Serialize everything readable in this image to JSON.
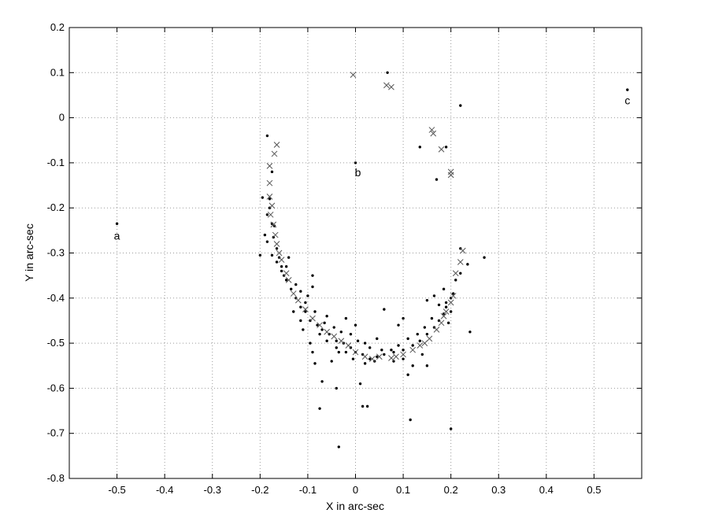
{
  "chart_data": {
    "type": "scatter",
    "xlabel": "X in arc-sec",
    "ylabel": "Y in arc-sec",
    "xlim": [
      -0.6,
      0.6
    ],
    "ylim": [
      -0.8,
      0.2
    ],
    "xticks": [
      -0.5,
      -0.4,
      -0.3,
      -0.2,
      -0.1,
      0,
      0.1,
      0.2,
      0.3,
      0.4,
      0.5
    ],
    "yticks": [
      0.2,
      0.1,
      0,
      -0.1,
      -0.2,
      -0.3,
      -0.4,
      -0.5,
      -0.6,
      -0.7,
      -0.8
    ],
    "xtick_labels": [
      "-0.5",
      "-0.4",
      "-0.3",
      "-0.2",
      "-0.1",
      "0",
      "0.1",
      "0.2",
      "0.3",
      "0.4",
      "0.5"
    ],
    "ytick_labels": [
      "0.2",
      "0.1",
      "0",
      "-0.1",
      "-0.2",
      "-0.3",
      "-0.4",
      "-0.5",
      "-0.6",
      "-0.7",
      "-0.8"
    ],
    "grid": true,
    "grid_style": "dotted",
    "annotations": [
      {
        "text": "a",
        "x": -0.5,
        "y": -0.27
      },
      {
        "text": "b",
        "x": 0.005,
        "y": -0.13
      },
      {
        "text": "c",
        "x": 0.57,
        "y": 0.03
      }
    ],
    "series": [
      {
        "marker": "dot",
        "color": "#000000",
        "points": [
          [
            -0.5,
            -0.235
          ],
          [
            0.0,
            -0.1
          ],
          [
            0.067,
            0.1
          ],
          [
            0.57,
            0.062
          ],
          [
            0.22,
            0.027
          ],
          [
            0.135,
            -0.065
          ],
          [
            0.17,
            -0.137
          ],
          [
            0.19,
            -0.065
          ],
          [
            -0.2,
            -0.305
          ],
          [
            -0.195,
            -0.177
          ],
          [
            -0.185,
            -0.04
          ],
          [
            -0.175,
            -0.12
          ],
          [
            -0.18,
            -0.2
          ],
          [
            -0.17,
            -0.24
          ],
          [
            -0.172,
            -0.265
          ],
          [
            -0.165,
            -0.29
          ],
          [
            -0.16,
            -0.31
          ],
          [
            -0.155,
            -0.33
          ],
          [
            -0.15,
            -0.35
          ],
          [
            -0.145,
            -0.36
          ],
          [
            -0.135,
            -0.38
          ],
          [
            -0.125,
            -0.4
          ],
          [
            -0.115,
            -0.42
          ],
          [
            -0.105,
            -0.43
          ],
          [
            -0.095,
            -0.45
          ],
          [
            -0.08,
            -0.46
          ],
          [
            -0.07,
            -0.47
          ],
          [
            -0.055,
            -0.48
          ],
          [
            -0.04,
            -0.495
          ],
          [
            -0.025,
            -0.5
          ],
          [
            -0.01,
            -0.51
          ],
          [
            0.0,
            -0.52
          ],
          [
            0.015,
            -0.525
          ],
          [
            0.03,
            -0.535
          ],
          [
            0.045,
            -0.53
          ],
          [
            0.06,
            -0.525
          ],
          [
            0.08,
            -0.52
          ],
          [
            0.1,
            -0.515
          ],
          [
            0.12,
            -0.505
          ],
          [
            0.135,
            -0.495
          ],
          [
            0.15,
            -0.48
          ],
          [
            0.165,
            -0.465
          ],
          [
            0.175,
            -0.45
          ],
          [
            0.185,
            -0.435
          ],
          [
            0.19,
            -0.42
          ],
          [
            0.2,
            -0.4
          ],
          [
            0.21,
            -0.36
          ],
          [
            0.22,
            -0.345
          ],
          [
            0.235,
            -0.325
          ],
          [
            0.27,
            -0.31
          ],
          [
            0.22,
            -0.29
          ],
          [
            0.185,
            -0.38
          ],
          [
            0.165,
            -0.395
          ],
          [
            0.15,
            -0.405
          ],
          [
            0.2,
            -0.43
          ],
          [
            0.24,
            -0.475
          ],
          [
            0.195,
            -0.455
          ],
          [
            0.1,
            -0.445
          ],
          [
            0.09,
            -0.46
          ],
          [
            0.06,
            -0.425
          ],
          [
            0.12,
            -0.55
          ],
          [
            0.11,
            -0.57
          ],
          [
            0.15,
            -0.55
          ],
          [
            0.14,
            -0.525
          ],
          [
            0.115,
            -0.67
          ],
          [
            0.2,
            -0.69
          ],
          [
            0.01,
            -0.59
          ],
          [
            0.015,
            -0.64
          ],
          [
            0.025,
            -0.64
          ],
          [
            -0.07,
            -0.585
          ],
          [
            -0.075,
            -0.645
          ],
          [
            -0.035,
            -0.73
          ],
          [
            -0.04,
            -0.6
          ],
          [
            -0.085,
            -0.545
          ],
          [
            -0.09,
            -0.52
          ],
          [
            -0.11,
            -0.47
          ],
          [
            -0.115,
            -0.45
          ],
          [
            -0.13,
            -0.43
          ],
          [
            -0.095,
            -0.5
          ],
          [
            -0.06,
            -0.44
          ],
          [
            -0.02,
            -0.445
          ],
          [
            0.0,
            -0.46
          ],
          [
            -0.01,
            -0.48
          ],
          [
            0.02,
            -0.5
          ],
          [
            -0.035,
            -0.52
          ],
          [
            -0.05,
            -0.54
          ],
          [
            0.045,
            -0.49
          ],
          [
            0.075,
            -0.515
          ],
          [
            -0.19,
            -0.26
          ],
          [
            -0.185,
            -0.275
          ],
          [
            -0.175,
            -0.305
          ],
          [
            -0.14,
            -0.31
          ],
          [
            -0.145,
            -0.33
          ],
          [
            -0.09,
            -0.375
          ],
          [
            -0.1,
            -0.395
          ],
          [
            -0.09,
            -0.35
          ],
          [
            -0.18,
            -0.18
          ],
          [
            -0.185,
            -0.215
          ],
          [
            -0.175,
            -0.235
          ],
          [
            -0.165,
            -0.32
          ],
          [
            -0.155,
            -0.34
          ],
          [
            -0.125,
            -0.37
          ],
          [
            -0.115,
            -0.385
          ],
          [
            -0.105,
            -0.41
          ],
          [
            -0.085,
            -0.43
          ],
          [
            -0.065,
            -0.455
          ],
          [
            -0.045,
            -0.465
          ],
          [
            -0.03,
            -0.475
          ],
          [
            0.005,
            -0.495
          ],
          [
            0.03,
            -0.51
          ],
          [
            0.055,
            -0.515
          ],
          [
            0.09,
            -0.505
          ],
          [
            0.11,
            -0.49
          ],
          [
            0.13,
            -0.48
          ],
          [
            0.145,
            -0.465
          ],
          [
            0.16,
            -0.445
          ],
          [
            0.175,
            -0.415
          ],
          [
            0.19,
            -0.41
          ],
          [
            0.205,
            -0.39
          ],
          [
            0.1,
            -0.535
          ],
          [
            0.08,
            -0.54
          ],
          [
            0.04,
            -0.54
          ],
          [
            0.02,
            -0.545
          ],
          [
            -0.005,
            -0.535
          ],
          [
            -0.02,
            -0.52
          ],
          [
            -0.04,
            -0.51
          ],
          [
            -0.06,
            -0.495
          ],
          [
            -0.075,
            -0.48
          ]
        ]
      },
      {
        "marker": "x",
        "color": "#555555",
        "points": [
          [
            -0.005,
            0.095
          ],
          [
            0.065,
            0.072
          ],
          [
            0.075,
            0.068
          ],
          [
            0.16,
            -0.027
          ],
          [
            0.163,
            -0.035
          ],
          [
            0.18,
            -0.07
          ],
          [
            0.2,
            -0.12
          ],
          [
            0.2,
            -0.127
          ],
          [
            -0.165,
            -0.06
          ],
          [
            -0.17,
            -0.08
          ],
          [
            -0.18,
            -0.107
          ],
          [
            -0.18,
            -0.145
          ],
          [
            -0.18,
            -0.175
          ],
          [
            -0.175,
            -0.195
          ],
          [
            -0.178,
            -0.215
          ],
          [
            -0.172,
            -0.237
          ],
          [
            -0.168,
            -0.26
          ],
          [
            -0.165,
            -0.28
          ],
          [
            -0.16,
            -0.3
          ],
          [
            -0.155,
            -0.315
          ],
          [
            -0.145,
            -0.345
          ],
          [
            -0.14,
            -0.36
          ],
          [
            -0.13,
            -0.39
          ],
          [
            -0.12,
            -0.405
          ],
          [
            -0.105,
            -0.425
          ],
          [
            -0.09,
            -0.445
          ],
          [
            -0.075,
            -0.46
          ],
          [
            -0.06,
            -0.475
          ],
          [
            -0.045,
            -0.485
          ],
          [
            -0.03,
            -0.495
          ],
          [
            -0.015,
            -0.505
          ],
          [
            0.0,
            -0.52
          ],
          [
            0.02,
            -0.53
          ],
          [
            0.035,
            -0.535
          ],
          [
            0.05,
            -0.53
          ],
          [
            0.075,
            -0.533
          ],
          [
            0.085,
            -0.53
          ],
          [
            0.1,
            -0.525
          ],
          [
            0.12,
            -0.515
          ],
          [
            0.135,
            -0.505
          ],
          [
            0.145,
            -0.5
          ],
          [
            0.155,
            -0.49
          ],
          [
            0.17,
            -0.47
          ],
          [
            0.18,
            -0.455
          ],
          [
            0.185,
            -0.44
          ],
          [
            0.19,
            -0.43
          ],
          [
            0.2,
            -0.41
          ],
          [
            0.205,
            -0.395
          ],
          [
            0.21,
            -0.345
          ],
          [
            0.22,
            -0.32
          ],
          [
            0.225,
            -0.295
          ]
        ]
      }
    ]
  }
}
